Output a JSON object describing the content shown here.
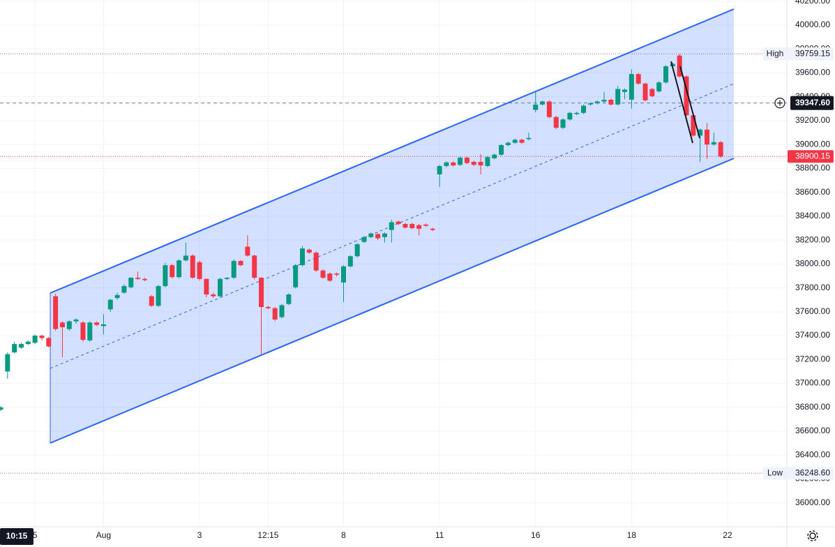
{
  "chart_data": {
    "type": "candlestick",
    "categories": [
      null,
      null,
      null,
      null,
      null,
      "5",
      null,
      null,
      null,
      null,
      null,
      null,
      null,
      null,
      null,
      "Aug",
      null,
      null,
      null,
      null,
      null,
      null,
      null,
      null,
      null,
      null,
      null,
      null,
      null,
      "3",
      null,
      null,
      null,
      null,
      null,
      null,
      null,
      null,
      null,
      "12:15",
      null,
      null,
      null,
      null,
      null,
      null,
      null,
      null,
      null,
      null,
      "8",
      null,
      null,
      null,
      null,
      null,
      null,
      null,
      null,
      null,
      null,
      null,
      null,
      null,
      "11",
      null,
      null,
      null,
      null,
      null,
      null,
      null,
      null,
      null,
      null,
      null,
      null,
      null,
      "16",
      null,
      null,
      null,
      null,
      null,
      null,
      null,
      null,
      null,
      null,
      null,
      null,
      null,
      "18",
      null,
      null,
      null,
      null,
      null,
      null,
      null,
      null,
      null,
      null,
      null,
      null,
      null,
      "22"
    ],
    "open": [
      36780,
      37100,
      37260,
      37300,
      37330,
      37340,
      37400,
      37380,
      37730,
      37510,
      37455,
      37520,
      37510,
      37360,
      37510,
      37480,
      37620,
      37715,
      37760,
      37805,
      37885,
      37875,
      37730,
      37650,
      37815,
      37990,
      37890,
      38030,
      38070,
      38015,
      37875,
      37745,
      37730,
      37875,
      37885,
      38025,
      38145,
      38070,
      37885,
      37640,
      37630,
      37555,
      37665,
      37805,
      37990,
      38120,
      38095,
      37945,
      37920,
      37920,
      37845,
      37980,
      38065,
      38185,
      38225,
      38250,
      38225,
      38285,
      38355,
      38335,
      38335,
      38325,
      38330,
      38295,
      38750,
      38820,
      38850,
      38830,
      38890,
      38855,
      38855,
      38820,
      38885,
      38915,
      38995,
      39015,
      39040,
      39045,
      39290,
      39335,
      39360,
      39230,
      39140,
      39210,
      39255,
      39265,
      39335,
      39345,
      39360,
      39375,
      39335,
      39440,
      39375,
      39590,
      39510,
      39465,
      39445,
      39520,
      39655,
      39745,
      39570,
      39245,
      39075,
      39125,
      39000,
      39020,
      null
    ],
    "high": [
      36810,
      37260,
      37350,
      37340,
      37360,
      37410,
      37410,
      37390,
      37750,
      37520,
      37530,
      37545,
      37520,
      37520,
      37520,
      37580,
      37710,
      37760,
      37830,
      37890,
      37935,
      37885,
      37740,
      37825,
      38010,
      38000,
      38040,
      38180,
      38080,
      38030,
      37880,
      37760,
      37885,
      37890,
      38040,
      38035,
      38240,
      38080,
      37890,
      37650,
      37640,
      37665,
      37755,
      38000,
      38150,
      38130,
      38105,
      37955,
      37930,
      37930,
      37990,
      38075,
      38175,
      38235,
      38265,
      38260,
      38265,
      38370,
      38365,
      38345,
      38345,
      38335,
      38340,
      38305,
      38830,
      38860,
      38860,
      38900,
      38900,
      38865,
      38920,
      38905,
      38925,
      39005,
      39025,
      39050,
      39050,
      39100,
      39450,
      39370,
      39370,
      39240,
      39220,
      39275,
      39275,
      39335,
      39355,
      39370,
      39440,
      39385,
      39490,
      39470,
      39630,
      39600,
      39520,
      39475,
      39530,
      39665,
      39685,
      39760,
      39580,
      39255,
      39135,
      39180,
      39100,
      39030,
      null
    ],
    "low": [
      36770,
      37040,
      37250,
      37290,
      37320,
      37330,
      37360,
      37300,
      37440,
      37220,
      37440,
      37500,
      37350,
      37350,
      37480,
      37410,
      37600,
      37700,
      37750,
      37795,
      37865,
      37855,
      37640,
      37640,
      37805,
      37880,
      37880,
      38020,
      37875,
      37860,
      37720,
      37715,
      37720,
      37865,
      37875,
      37980,
      38060,
      37870,
      37245,
      37620,
      37520,
      37545,
      37655,
      37795,
      37980,
      38085,
      37935,
      37875,
      37850,
      37895,
      37680,
      37970,
      38055,
      38175,
      38215,
      38200,
      38180,
      38180,
      38325,
      38295,
      38290,
      38240,
      38310,
      38275,
      38645,
      38810,
      38815,
      38820,
      38835,
      38820,
      38750,
      38810,
      38875,
      38905,
      38985,
      39005,
      39005,
      39035,
      39270,
      39325,
      39220,
      39130,
      39130,
      39200,
      39245,
      39255,
      39325,
      39335,
      39350,
      39325,
      39325,
      39380,
      39300,
      39500,
      39360,
      39395,
      39435,
      39510,
      39645,
      39560,
      39235,
      39065,
      38855,
      38880,
      38990,
      38890,
      null
    ],
    "close": [
      36800,
      37245,
      37330,
      37330,
      37350,
      37400,
      37380,
      37310,
      37455,
      37470,
      37520,
      37535,
      37365,
      37510,
      37490,
      37495,
      37700,
      37740,
      37815,
      37885,
      37875,
      37865,
      37650,
      37815,
      37990,
      37890,
      38030,
      38070,
      37885,
      37875,
      37745,
      37730,
      37875,
      37885,
      38025,
      37990,
      38070,
      37885,
      37640,
      37630,
      37535,
      37655,
      37745,
      37990,
      38130,
      38095,
      37945,
      37885,
      37860,
      37910,
      37980,
      38065,
      38165,
      38225,
      38255,
      38215,
      38255,
      38350,
      38335,
      38305,
      38300,
      38295,
      38320,
      38285,
      38820,
      38850,
      38825,
      38890,
      38845,
      38830,
      38825,
      38895,
      38915,
      38995,
      39015,
      39040,
      39015,
      39055,
      39335,
      39360,
      39230,
      39140,
      39210,
      39265,
      39265,
      39325,
      39345,
      39360,
      39375,
      39335,
      39465,
      39460,
      39590,
      39510,
      39370,
      39405,
      39520,
      39655,
      39675,
      39570,
      39245,
      39075,
      39125,
      39000,
      39020,
      38900,
      null
    ],
    "up_color": "#089981",
    "down_color": "#f23645",
    "ylim": [
      35800,
      40210
    ],
    "yticks": [
      {
        "value": 36000,
        "label": "36000.00"
      },
      {
        "value": 36200,
        "label": "36200.00"
      },
      {
        "value": 36400,
        "label": "36400.00"
      },
      {
        "value": 36600,
        "label": "36600.00"
      },
      {
        "value": 36800,
        "label": "36800.00"
      },
      {
        "value": 37000,
        "label": "37000.00"
      },
      {
        "value": 37200,
        "label": "37200.00"
      },
      {
        "value": 37400,
        "label": "37400.00"
      },
      {
        "value": 37600,
        "label": "37600.00"
      },
      {
        "value": 37800,
        "label": "37800.00"
      },
      {
        "value": 38000,
        "label": "38000.00"
      },
      {
        "value": 38200,
        "label": "38200.00"
      },
      {
        "value": 38400,
        "label": "38400.00"
      },
      {
        "value": 38600,
        "label": "38600.00"
      },
      {
        "value": 38800,
        "label": "38800.00"
      },
      {
        "value": 39000,
        "label": "39000.00"
      },
      {
        "value": 39200,
        "label": "39200.00"
      },
      {
        "value": 39400,
        "label": "39400.00"
      },
      {
        "value": 39600,
        "label": "39600.00"
      },
      {
        "value": 39800,
        "label": "39800.00"
      },
      {
        "value": 40000,
        "label": "40000.00"
      },
      {
        "value": 40200,
        "label": "40200.00"
      }
    ],
    "grid": true,
    "high_marker": {
      "name": "High",
      "value": 39759.15,
      "label": "39759.15"
    },
    "low_marker": {
      "name": "Low",
      "value": 36248.6,
      "label": "36248.60"
    },
    "crosshair": {
      "time": "10:15",
      "value": 39347.6,
      "label": "39347.60"
    },
    "last_price": {
      "value": 38900.15,
      "label": "38900.15"
    }
  }
}
